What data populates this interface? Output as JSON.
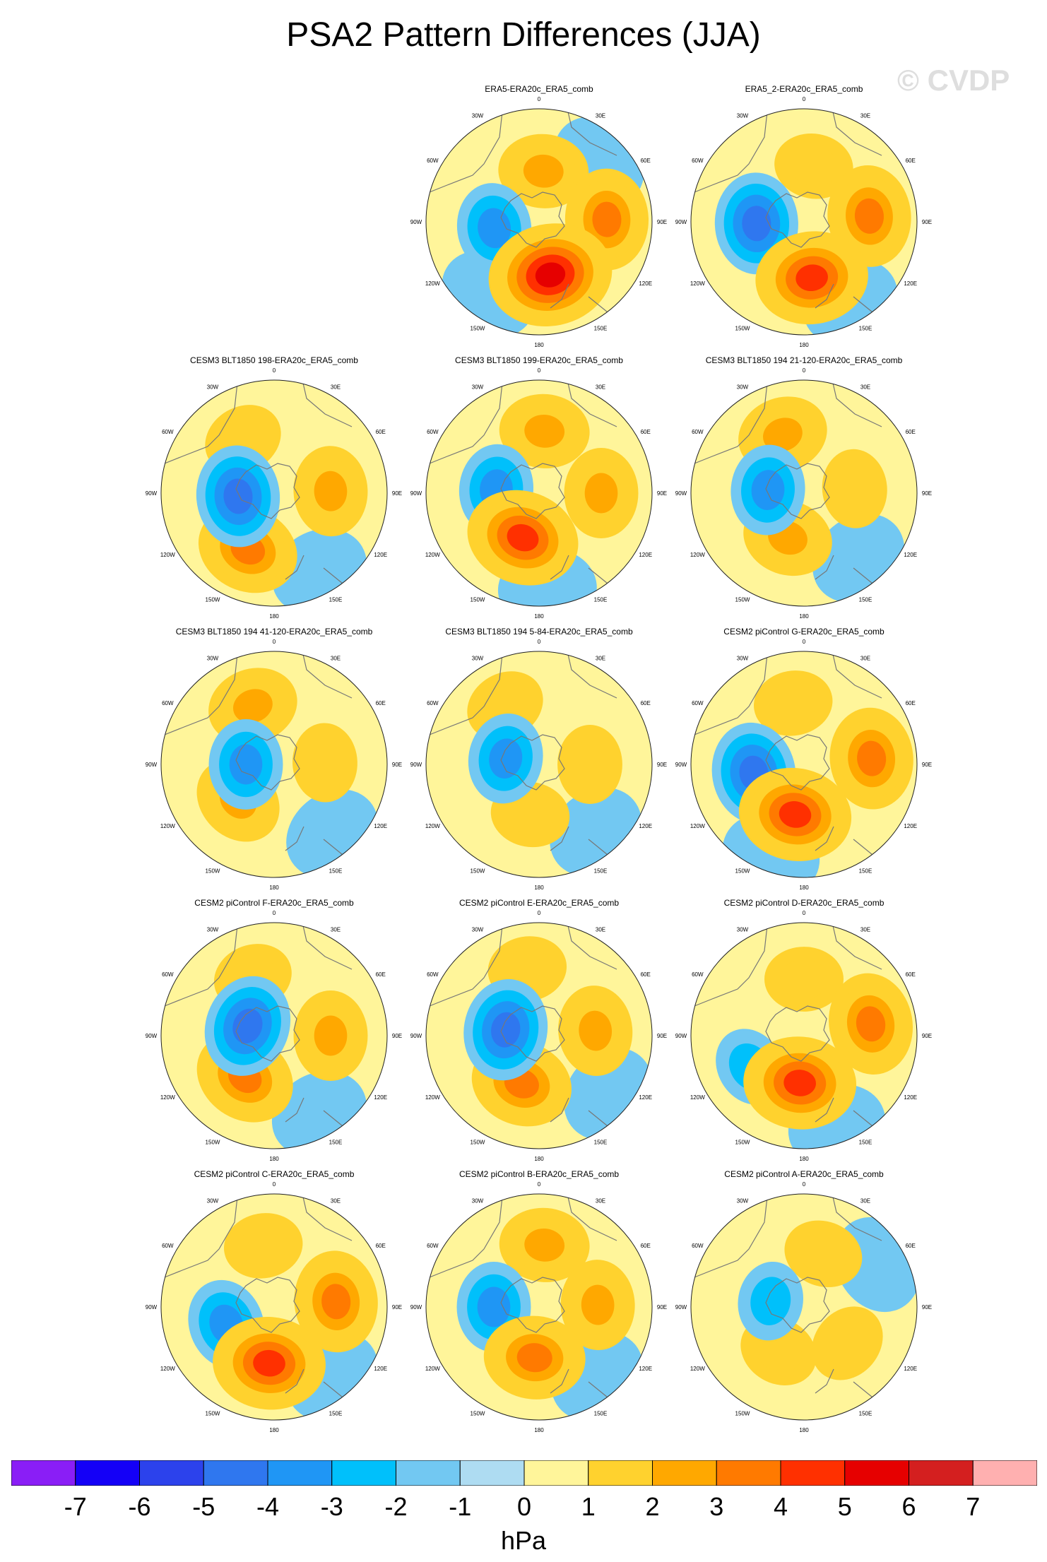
{
  "page": {
    "title": "PSA2 Pattern Differences (JJA)",
    "watermark": "© CVDP"
  },
  "chart_data": {
    "type": "heatmap",
    "projection": "south polar stereographic",
    "longitude_labels": [
      "0",
      "30E",
      "60E",
      "90E",
      "120E",
      "150E",
      "180",
      "150W",
      "120W",
      "90W",
      "60W",
      "30W"
    ],
    "colorbar": {
      "units": "hPa",
      "ticks": [
        "-7",
        "-6",
        "-5",
        "-4",
        "-3",
        "-2",
        "-1",
        "0",
        "1",
        "2",
        "3",
        "4",
        "5",
        "6",
        "7"
      ],
      "colors": [
        "#8a1ef6",
        "#1400f7",
        "#2c42ec",
        "#2f77ef",
        "#1f96f5",
        "#00c0fb",
        "#72c8f2",
        "#aedcf2",
        "#fff59a",
        "#ffd22e",
        "#ffa800",
        "#ff7a00",
        "#ff3000",
        "#e60000",
        "#d41f1f",
        "#ffb0b0"
      ]
    },
    "panels": [
      {
        "title": "ERA5-ERA20c_ERA5_comb",
        "blobs": [
          {
            "lon": 5,
            "r": 0.45,
            "v": 3
          },
          {
            "lon": 88,
            "r": 0.6,
            "v": 4
          },
          {
            "lon": 168,
            "r": 0.48,
            "v": 6
          },
          {
            "lon": 262,
            "r": 0.4,
            "v": -3
          },
          {
            "lon": 215,
            "r": 0.78,
            "v": -1
          },
          {
            "lon": 45,
            "r": 0.75,
            "v": -1
          }
        ]
      },
      {
        "title": "ERA5_2-ERA20c_ERA5_comb",
        "blobs": [
          {
            "lon": 10,
            "r": 0.5,
            "v": 2
          },
          {
            "lon": 85,
            "r": 0.58,
            "v": 4
          },
          {
            "lon": 172,
            "r": 0.5,
            "v": 5
          },
          {
            "lon": 268,
            "r": 0.42,
            "v": -4
          },
          {
            "lon": 150,
            "r": 0.82,
            "v": -1
          }
        ]
      },
      {
        "title": "CESM3 BLT1850 198-ERA20c_ERA5_comb",
        "blobs": [
          {
            "lon": 330,
            "r": 0.55,
            "v": 2
          },
          {
            "lon": 88,
            "r": 0.5,
            "v": 3
          },
          {
            "lon": 205,
            "r": 0.55,
            "v": 4
          },
          {
            "lon": 265,
            "r": 0.32,
            "v": -4
          },
          {
            "lon": 150,
            "r": 0.8,
            "v": -1
          }
        ]
      },
      {
        "title": "CESM3 BLT1850 199-ERA20c_ERA5_comb",
        "blobs": [
          {
            "lon": 5,
            "r": 0.55,
            "v": 3
          },
          {
            "lon": 90,
            "r": 0.55,
            "v": 3
          },
          {
            "lon": 200,
            "r": 0.42,
            "v": 5
          },
          {
            "lon": 275,
            "r": 0.38,
            "v": -3
          },
          {
            "lon": 175,
            "r": 0.85,
            "v": -1
          }
        ]
      },
      {
        "title": "CESM3 BLT1850 194 21-120-ERA20c_ERA5_comb",
        "blobs": [
          {
            "lon": 340,
            "r": 0.55,
            "v": 3
          },
          {
            "lon": 85,
            "r": 0.45,
            "v": 2
          },
          {
            "lon": 200,
            "r": 0.42,
            "v": 3
          },
          {
            "lon": 275,
            "r": 0.32,
            "v": -3
          },
          {
            "lon": 140,
            "r": 0.75,
            "v": -1
          }
        ]
      },
      {
        "title": "CESM3 BLT1850 194 41-120-ERA20c_ERA5_comb",
        "blobs": [
          {
            "lon": 340,
            "r": 0.55,
            "v": 3
          },
          {
            "lon": 88,
            "r": 0.45,
            "v": 2
          },
          {
            "lon": 225,
            "r": 0.45,
            "v": 3
          },
          {
            "lon": 270,
            "r": 0.25,
            "v": -3
          },
          {
            "lon": 140,
            "r": 0.8,
            "v": -1
          }
        ]
      },
      {
        "title": "CESM3 BLT1850 194 5-84-ERA20c_ERA5_comb",
        "blobs": [
          {
            "lon": 330,
            "r": 0.6,
            "v": 2
          },
          {
            "lon": 90,
            "r": 0.45,
            "v": 2
          },
          {
            "lon": 190,
            "r": 0.45,
            "v": 2
          },
          {
            "lon": 280,
            "r": 0.3,
            "v": -3
          },
          {
            "lon": 140,
            "r": 0.78,
            "v": -1
          }
        ]
      },
      {
        "title": "CESM2 piControl G-ERA20c_ERA5_comb",
        "blobs": [
          {
            "lon": 350,
            "r": 0.55,
            "v": 2
          },
          {
            "lon": 85,
            "r": 0.6,
            "v": 4
          },
          {
            "lon": 190,
            "r": 0.45,
            "v": 5
          },
          {
            "lon": 260,
            "r": 0.45,
            "v": -4
          },
          {
            "lon": 200,
            "r": 0.85,
            "v": -1
          }
        ]
      },
      {
        "title": "CESM2 piControl F-ERA20c_ERA5_comb",
        "blobs": [
          {
            "lon": 340,
            "r": 0.55,
            "v": 2
          },
          {
            "lon": 90,
            "r": 0.5,
            "v": 3
          },
          {
            "lon": 215,
            "r": 0.45,
            "v": 4
          },
          {
            "lon": 290,
            "r": 0.25,
            "v": -4
          },
          {
            "lon": 150,
            "r": 0.8,
            "v": -1
          }
        ]
      },
      {
        "title": "CESM2 piControl E-ERA20c_ERA5_comb",
        "blobs": [
          {
            "lon": 350,
            "r": 0.6,
            "v": 2
          },
          {
            "lon": 85,
            "r": 0.5,
            "v": 3
          },
          {
            "lon": 200,
            "r": 0.45,
            "v": 4
          },
          {
            "lon": 280,
            "r": 0.3,
            "v": -4
          },
          {
            "lon": 130,
            "r": 0.8,
            "v": -1
          }
        ]
      },
      {
        "title": "CESM2 piControl D-ERA20c_ERA5_comb",
        "blobs": [
          {
            "lon": 0,
            "r": 0.5,
            "v": 2
          },
          {
            "lon": 80,
            "r": 0.6,
            "v": 4
          },
          {
            "lon": 185,
            "r": 0.42,
            "v": 5
          },
          {
            "lon": 240,
            "r": 0.55,
            "v": -2
          },
          {
            "lon": 160,
            "r": 0.85,
            "v": -1
          }
        ]
      },
      {
        "title": "CESM2 piControl C-ERA20c_ERA5_comb",
        "blobs": [
          {
            "lon": 350,
            "r": 0.55,
            "v": 2
          },
          {
            "lon": 85,
            "r": 0.55,
            "v": 4
          },
          {
            "lon": 185,
            "r": 0.5,
            "v": 5
          },
          {
            "lon": 250,
            "r": 0.45,
            "v": -3
          },
          {
            "lon": 140,
            "r": 0.8,
            "v": -1
          }
        ]
      },
      {
        "title": "CESM2 piControl B-ERA20c_ERA5_comb",
        "blobs": [
          {
            "lon": 5,
            "r": 0.55,
            "v": 3
          },
          {
            "lon": 88,
            "r": 0.52,
            "v": 3
          },
          {
            "lon": 185,
            "r": 0.45,
            "v": 4
          },
          {
            "lon": 270,
            "r": 0.4,
            "v": -3
          },
          {
            "lon": 140,
            "r": 0.8,
            "v": -1
          }
        ]
      },
      {
        "title": "CESM2 piControl A-ERA20c_ERA5_comb",
        "blobs": [
          {
            "lon": 20,
            "r": 0.5,
            "v": 2
          },
          {
            "lon": 130,
            "r": 0.5,
            "v": 2
          },
          {
            "lon": 210,
            "r": 0.45,
            "v": 2
          },
          {
            "lon": 280,
            "r": 0.3,
            "v": -2
          },
          {
            "lon": 60,
            "r": 0.75,
            "v": -1
          }
        ]
      }
    ]
  }
}
